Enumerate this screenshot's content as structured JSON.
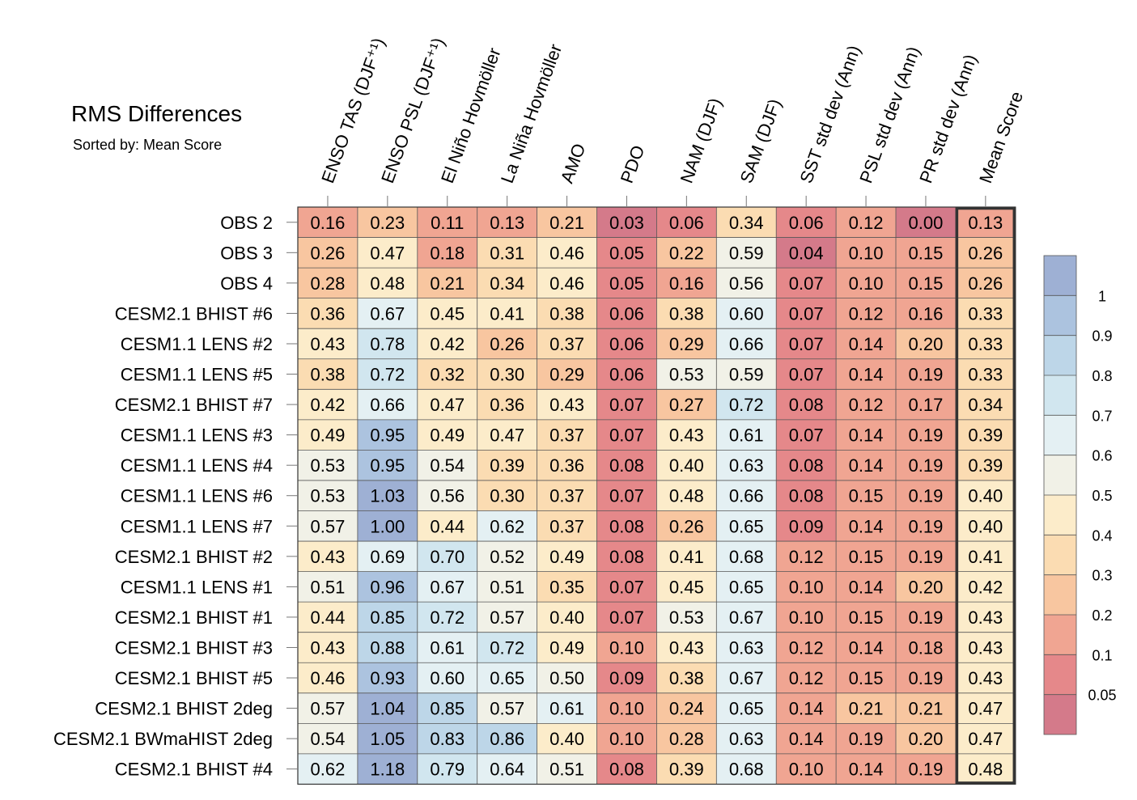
{
  "chart_data": {
    "type": "heatmap",
    "title": "RMS Differences",
    "subtitle": "Sorted by: Mean Score",
    "columns": [
      "ENSO TAS (DJF⁺¹)",
      "ENSO PSL (DJF⁺¹)",
      "El Niño Hovmöller",
      "La Niña Hovmöller",
      "AMO",
      "PDO",
      "NAM (DJF)",
      "SAM (DJF)",
      "SST std dev (Ann)",
      "PSL std dev (Ann)",
      "PR std dev (Ann)",
      "Mean Score"
    ],
    "rows": [
      "OBS 2",
      "OBS 3",
      "OBS 4",
      "CESM2.1 BHIST #6",
      "CESM1.1 LENS #2",
      "CESM1.1 LENS #5",
      "CESM2.1 BHIST #7",
      "CESM1.1 LENS #3",
      "CESM1.1 LENS #4",
      "CESM1.1 LENS #6",
      "CESM1.1 LENS #7",
      "CESM2.1 BHIST #2",
      "CESM1.1 LENS #1",
      "CESM2.1 BHIST #1",
      "CESM2.1 BHIST #3",
      "CESM2.1 BHIST #5",
      "CESM2.1 BHIST 2deg",
      "CESM2.1 BWmaHIST 2deg",
      "CESM2.1 BHIST #4"
    ],
    "values": [
      [
        "0.16",
        "0.23",
        "0.11",
        "0.13",
        "0.21",
        "0.03",
        "0.06",
        "0.34",
        "0.06",
        "0.12",
        "0.00",
        "0.13"
      ],
      [
        "0.26",
        "0.47",
        "0.18",
        "0.31",
        "0.46",
        "0.05",
        "0.22",
        "0.59",
        "0.04",
        "0.10",
        "0.15",
        "0.26"
      ],
      [
        "0.28",
        "0.48",
        "0.21",
        "0.34",
        "0.46",
        "0.05",
        "0.16",
        "0.56",
        "0.07",
        "0.10",
        "0.15",
        "0.26"
      ],
      [
        "0.36",
        "0.67",
        "0.45",
        "0.41",
        "0.38",
        "0.06",
        "0.38",
        "0.60",
        "0.07",
        "0.12",
        "0.16",
        "0.33"
      ],
      [
        "0.43",
        "0.78",
        "0.42",
        "0.26",
        "0.37",
        "0.06",
        "0.29",
        "0.66",
        "0.07",
        "0.14",
        "0.20",
        "0.33"
      ],
      [
        "0.38",
        "0.72",
        "0.32",
        "0.30",
        "0.29",
        "0.06",
        "0.53",
        "0.59",
        "0.07",
        "0.14",
        "0.19",
        "0.33"
      ],
      [
        "0.42",
        "0.66",
        "0.47",
        "0.36",
        "0.43",
        "0.07",
        "0.27",
        "0.72",
        "0.08",
        "0.12",
        "0.17",
        "0.34"
      ],
      [
        "0.49",
        "0.95",
        "0.49",
        "0.47",
        "0.37",
        "0.07",
        "0.43",
        "0.61",
        "0.07",
        "0.14",
        "0.19",
        "0.39"
      ],
      [
        "0.53",
        "0.95",
        "0.54",
        "0.39",
        "0.36",
        "0.08",
        "0.40",
        "0.63",
        "0.08",
        "0.14",
        "0.19",
        "0.39"
      ],
      [
        "0.53",
        "1.03",
        "0.56",
        "0.30",
        "0.37",
        "0.07",
        "0.48",
        "0.66",
        "0.08",
        "0.15",
        "0.19",
        "0.40"
      ],
      [
        "0.57",
        "1.00",
        "0.44",
        "0.62",
        "0.37",
        "0.08",
        "0.26",
        "0.65",
        "0.09",
        "0.14",
        "0.19",
        "0.40"
      ],
      [
        "0.43",
        "0.69",
        "0.70",
        "0.52",
        "0.49",
        "0.08",
        "0.41",
        "0.68",
        "0.12",
        "0.15",
        "0.19",
        "0.41"
      ],
      [
        "0.51",
        "0.96",
        "0.67",
        "0.51",
        "0.35",
        "0.07",
        "0.45",
        "0.65",
        "0.10",
        "0.14",
        "0.20",
        "0.42"
      ],
      [
        "0.44",
        "0.85",
        "0.72",
        "0.57",
        "0.40",
        "0.07",
        "0.53",
        "0.67",
        "0.10",
        "0.15",
        "0.19",
        "0.43"
      ],
      [
        "0.43",
        "0.88",
        "0.61",
        "0.72",
        "0.49",
        "0.10",
        "0.43",
        "0.63",
        "0.12",
        "0.14",
        "0.18",
        "0.43"
      ],
      [
        "0.46",
        "0.93",
        "0.60",
        "0.65",
        "0.50",
        "0.09",
        "0.38",
        "0.67",
        "0.12",
        "0.15",
        "0.19",
        "0.43"
      ],
      [
        "0.57",
        "1.04",
        "0.85",
        "0.57",
        "0.61",
        "0.10",
        "0.24",
        "0.65",
        "0.14",
        "0.21",
        "0.21",
        "0.47"
      ],
      [
        "0.54",
        "1.05",
        "0.83",
        "0.86",
        "0.40",
        "0.10",
        "0.28",
        "0.63",
        "0.14",
        "0.19",
        "0.20",
        "0.47"
      ],
      [
        "0.62",
        "1.18",
        "0.79",
        "0.64",
        "0.51",
        "0.08",
        "0.39",
        "0.68",
        "0.10",
        "0.14",
        "0.19",
        "0.48"
      ]
    ],
    "colorbar": {
      "levels": [
        "1",
        "0.9",
        "0.8",
        "0.7",
        "0.6",
        "0.5",
        "0.4",
        "0.3",
        "0.2",
        "0.1",
        "0.05"
      ],
      "colors": [
        "#9eb0d4",
        "#acc3df",
        "#bdd6e8",
        "#d1e6ef",
        "#e4f0f3",
        "#f1f1e7",
        "#fcecca",
        "#fbdcb2",
        "#f8c6a0",
        "#f0a592",
        "#e5888a",
        "#d47a8a"
      ],
      "placement": "right"
    },
    "highlighted_column": "Mean Score"
  }
}
